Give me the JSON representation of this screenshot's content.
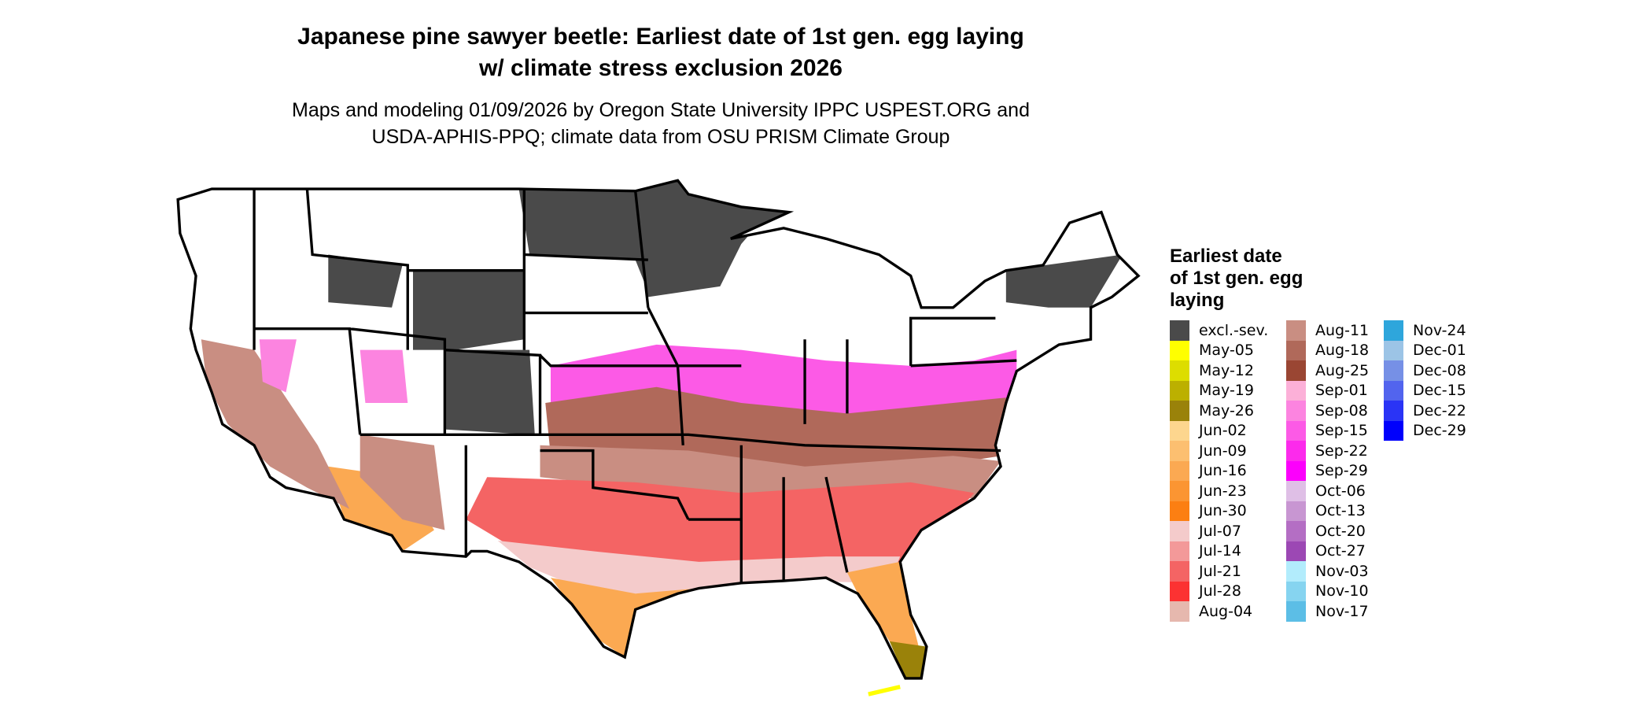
{
  "title": [
    "Japanese pine sawyer beetle: Earliest date of 1st gen. egg laying",
    "w/ climate stress exclusion 2026"
  ],
  "subtitle": [
    "Maps and modeling 01/09/2026 by Oregon State University IPPC USPEST.ORG and",
    "USDA-APHIS-PPQ; climate data from OSU PRISM Climate Group"
  ],
  "legend": {
    "title": [
      "Earliest date",
      "of 1st gen. egg",
      "laying"
    ],
    "items": [
      {
        "label": "excl.-sev.",
        "color": "#4a4a4a"
      },
      {
        "label": "May-05",
        "color": "#ffff00"
      },
      {
        "label": "May-12",
        "color": "#dddd00"
      },
      {
        "label": "May-19",
        "color": "#bcb000"
      },
      {
        "label": "May-26",
        "color": "#9a820a"
      },
      {
        "label": "Jun-02",
        "color": "#fdd68e"
      },
      {
        "label": "Jun-09",
        "color": "#fcbf70"
      },
      {
        "label": "Jun-16",
        "color": "#fba952"
      },
      {
        "label": "Jun-23",
        "color": "#fb9532"
      },
      {
        "label": "Jun-30",
        "color": "#fc7f12"
      },
      {
        "label": "Jul-07",
        "color": "#f4cbcb"
      },
      {
        "label": "Jul-14",
        "color": "#f39999"
      },
      {
        "label": "Jul-21",
        "color": "#f46464"
      },
      {
        "label": "Jul-28",
        "color": "#fc3232"
      },
      {
        "label": "Aug-04",
        "color": "#e6b8ae"
      },
      {
        "label": "Aug-11",
        "color": "#c98e82"
      },
      {
        "label": "Aug-18",
        "color": "#b0695a"
      },
      {
        "label": "Aug-25",
        "color": "#9a4633"
      },
      {
        "label": "Sep-01",
        "color": "#fcb0d8"
      },
      {
        "label": "Sep-08",
        "color": "#fc84e0"
      },
      {
        "label": "Sep-15",
        "color": "#fc5ae6"
      },
      {
        "label": "Sep-22",
        "color": "#fc2aec"
      },
      {
        "label": "Sep-29",
        "color": "#fc00fc"
      },
      {
        "label": "Oct-06",
        "color": "#dfbfe6"
      },
      {
        "label": "Oct-13",
        "color": "#c896d2"
      },
      {
        "label": "Oct-20",
        "color": "#b46ec4"
      },
      {
        "label": "Oct-27",
        "color": "#9c48b4"
      },
      {
        "label": "Nov-03",
        "color": "#b2ecfc"
      },
      {
        "label": "Nov-10",
        "color": "#86d4f0"
      },
      {
        "label": "Nov-17",
        "color": "#5cbee6"
      },
      {
        "label": "Nov-24",
        "color": "#2ea6dc"
      },
      {
        "label": "Dec-01",
        "color": "#9cc4e6"
      },
      {
        "label": "Dec-08",
        "color": "#7690e6"
      },
      {
        "label": "Dec-15",
        "color": "#5264ee"
      },
      {
        "label": "Dec-22",
        "color": "#2a34f6"
      },
      {
        "label": "Dec-29",
        "color": "#0000fc"
      }
    ]
  }
}
